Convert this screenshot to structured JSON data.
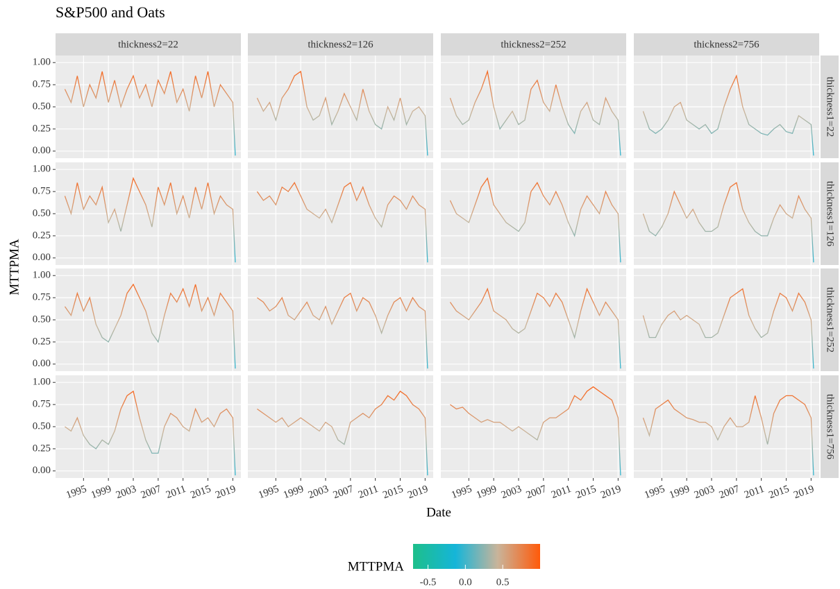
{
  "chart_data": {
    "type": "line",
    "title": "S&P500 and Oats",
    "xlabel": "Date",
    "ylabel": "MTTPMA",
    "facet_cols": [
      "thickness2=22",
      "thickness2=126",
      "thickness2=252",
      "thickness2=756"
    ],
    "facet_rows": [
      "thickness1=22",
      "thickness1=126",
      "thickness1=252",
      "thickness1=756"
    ],
    "x": [
      1992,
      1993,
      1994,
      1995,
      1996,
      1997,
      1998,
      1999,
      2000,
      2001,
      2002,
      2003,
      2004,
      2005,
      2006,
      2007,
      2008,
      2009,
      2010,
      2011,
      2012,
      2013,
      2014,
      2015,
      2016,
      2017,
      2018,
      2019,
      2019.4
    ],
    "xlim": [
      1990.5,
      2020.3
    ],
    "xticks": [
      1995,
      1999,
      2003,
      2007,
      2011,
      2015,
      2019
    ],
    "ylim": [
      -0.08,
      1.08
    ],
    "yticks": [
      {
        "value": 0,
        "label": "0.00"
      },
      {
        "value": 0.25,
        "label": "0.25"
      },
      {
        "value": 0.5,
        "label": "0.50"
      },
      {
        "value": 0.75,
        "label": "0.75"
      },
      {
        "value": 1,
        "label": "1.00"
      }
    ],
    "grid": true,
    "color_scale": {
      "title": "MTTPMA",
      "colors": [
        "#1dbf8a",
        "#15b5d9",
        "#c9b49a",
        "#ff5a0a"
      ],
      "limits": [
        -0.7,
        1.0
      ],
      "ticks": [
        -0.5,
        {
          "value": 0,
          "label": "0.0"
        },
        0.5
      ]
    },
    "panels": [
      [
        [
          0.7,
          0.55,
          0.85,
          0.5,
          0.75,
          0.6,
          0.9,
          0.55,
          0.8,
          0.5,
          0.7,
          0.85,
          0.6,
          0.75,
          0.5,
          0.8,
          0.65,
          0.9,
          0.55,
          0.7,
          0.45,
          0.85,
          0.6,
          0.9,
          0.5,
          0.75,
          0.65,
          0.55,
          -0.05
        ],
        [
          0.6,
          0.45,
          0.55,
          0.35,
          0.6,
          0.7,
          0.85,
          0.9,
          0.5,
          0.35,
          0.4,
          0.6,
          0.3,
          0.45,
          0.65,
          0.5,
          0.35,
          0.7,
          0.45,
          0.3,
          0.25,
          0.5,
          0.35,
          0.6,
          0.3,
          0.45,
          0.5,
          0.4,
          -0.05
        ],
        [
          0.6,
          0.4,
          0.3,
          0.35,
          0.55,
          0.7,
          0.9,
          0.5,
          0.25,
          0.35,
          0.45,
          0.3,
          0.35,
          0.7,
          0.8,
          0.55,
          0.45,
          0.75,
          0.5,
          0.3,
          0.2,
          0.45,
          0.55,
          0.35,
          0.3,
          0.6,
          0.45,
          0.35,
          -0.05
        ],
        [
          0.45,
          0.25,
          0.2,
          0.25,
          0.35,
          0.5,
          0.55,
          0.35,
          0.3,
          0.25,
          0.3,
          0.2,
          0.25,
          0.5,
          0.7,
          0.85,
          0.5,
          0.3,
          0.25,
          0.2,
          0.18,
          0.25,
          0.3,
          0.22,
          0.2,
          0.4,
          0.35,
          0.3,
          -0.05
        ]
      ],
      [
        [
          0.7,
          0.5,
          0.85,
          0.55,
          0.7,
          0.6,
          0.8,
          0.4,
          0.55,
          0.3,
          0.6,
          0.9,
          0.75,
          0.6,
          0.35,
          0.8,
          0.6,
          0.85,
          0.5,
          0.7,
          0.45,
          0.8,
          0.55,
          0.85,
          0.5,
          0.7,
          0.6,
          0.55,
          -0.05
        ],
        [
          0.75,
          0.65,
          0.7,
          0.6,
          0.8,
          0.75,
          0.85,
          0.7,
          0.55,
          0.5,
          0.45,
          0.55,
          0.4,
          0.6,
          0.8,
          0.85,
          0.65,
          0.8,
          0.6,
          0.45,
          0.35,
          0.6,
          0.7,
          0.65,
          0.55,
          0.7,
          0.6,
          0.55,
          -0.05
        ],
        [
          0.65,
          0.5,
          0.45,
          0.4,
          0.6,
          0.8,
          0.9,
          0.6,
          0.5,
          0.4,
          0.35,
          0.3,
          0.4,
          0.75,
          0.85,
          0.7,
          0.6,
          0.75,
          0.6,
          0.4,
          0.25,
          0.55,
          0.7,
          0.6,
          0.5,
          0.75,
          0.6,
          0.5,
          -0.05
        ],
        [
          0.5,
          0.3,
          0.25,
          0.35,
          0.5,
          0.75,
          0.6,
          0.45,
          0.55,
          0.4,
          0.3,
          0.3,
          0.35,
          0.6,
          0.8,
          0.85,
          0.55,
          0.4,
          0.3,
          0.25,
          0.25,
          0.45,
          0.6,
          0.5,
          0.45,
          0.7,
          0.55,
          0.45,
          -0.05
        ]
      ],
      [
        [
          0.65,
          0.55,
          0.8,
          0.6,
          0.75,
          0.45,
          0.3,
          0.25,
          0.4,
          0.55,
          0.8,
          0.9,
          0.75,
          0.6,
          0.35,
          0.25,
          0.55,
          0.8,
          0.7,
          0.85,
          0.65,
          0.9,
          0.6,
          0.75,
          0.55,
          0.8,
          0.7,
          0.6,
          -0.05
        ],
        [
          0.75,
          0.7,
          0.6,
          0.65,
          0.75,
          0.55,
          0.5,
          0.6,
          0.7,
          0.55,
          0.5,
          0.65,
          0.45,
          0.6,
          0.75,
          0.8,
          0.6,
          0.75,
          0.7,
          0.55,
          0.35,
          0.55,
          0.7,
          0.75,
          0.6,
          0.75,
          0.65,
          0.6,
          -0.05
        ],
        [
          0.7,
          0.6,
          0.55,
          0.5,
          0.6,
          0.7,
          0.85,
          0.6,
          0.55,
          0.5,
          0.4,
          0.35,
          0.4,
          0.6,
          0.8,
          0.75,
          0.65,
          0.8,
          0.7,
          0.5,
          0.3,
          0.6,
          0.85,
          0.7,
          0.55,
          0.7,
          0.6,
          0.5,
          -0.05
        ],
        [
          0.55,
          0.3,
          0.3,
          0.45,
          0.55,
          0.6,
          0.5,
          0.55,
          0.5,
          0.45,
          0.3,
          0.3,
          0.35,
          0.55,
          0.75,
          0.8,
          0.85,
          0.55,
          0.4,
          0.3,
          0.35,
          0.6,
          0.8,
          0.75,
          0.6,
          0.8,
          0.7,
          0.5,
          -0.05
        ]
      ],
      [
        [
          0.5,
          0.45,
          0.6,
          0.4,
          0.3,
          0.25,
          0.35,
          0.3,
          0.45,
          0.7,
          0.85,
          0.9,
          0.6,
          0.35,
          0.2,
          0.2,
          0.5,
          0.65,
          0.6,
          0.5,
          0.45,
          0.7,
          0.55,
          0.6,
          0.5,
          0.65,
          0.7,
          0.6,
          -0.05
        ],
        [
          0.7,
          0.65,
          0.6,
          0.55,
          0.6,
          0.5,
          0.55,
          0.6,
          0.55,
          0.5,
          0.45,
          0.55,
          0.5,
          0.35,
          0.3,
          0.55,
          0.6,
          0.65,
          0.6,
          0.7,
          0.75,
          0.85,
          0.8,
          0.9,
          0.85,
          0.75,
          0.7,
          0.6,
          -0.05
        ],
        [
          0.75,
          0.7,
          0.72,
          0.65,
          0.6,
          0.55,
          0.58,
          0.55,
          0.55,
          0.5,
          0.45,
          0.5,
          0.45,
          0.4,
          0.35,
          0.55,
          0.6,
          0.6,
          0.65,
          0.7,
          0.85,
          0.8,
          0.9,
          0.95,
          0.9,
          0.85,
          0.8,
          0.6,
          -0.05
        ],
        [
          0.6,
          0.4,
          0.7,
          0.75,
          0.8,
          0.7,
          0.65,
          0.6,
          0.58,
          0.55,
          0.55,
          0.5,
          0.35,
          0.5,
          0.6,
          0.5,
          0.5,
          0.55,
          0.85,
          0.6,
          0.3,
          0.65,
          0.8,
          0.85,
          0.85,
          0.8,
          0.75,
          0.6,
          -0.05
        ]
      ]
    ]
  }
}
